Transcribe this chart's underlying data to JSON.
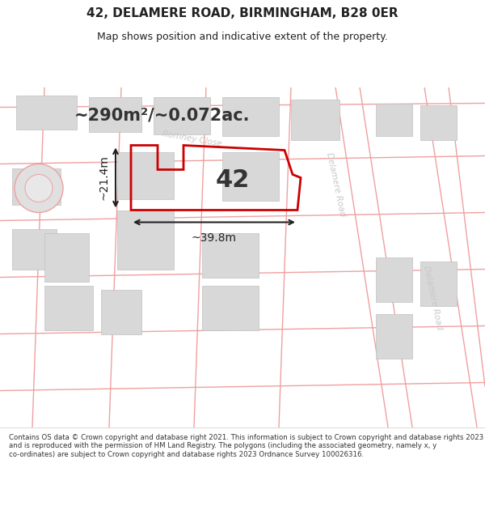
{
  "title_line1": "42, DELAMERE ROAD, BIRMINGHAM, B28 0ER",
  "title_line2": "Map shows position and indicative extent of the property.",
  "area_text": "~290m²/~0.072ac.",
  "label_42": "42",
  "label_width": "~39.8m",
  "label_height": "~21.4m",
  "road_label_1": "Delamere Road",
  "road_label_2": "Delamere Road",
  "road_label_romney": "Romney Close",
  "footer_text": "Contains OS data © Crown copyright and database right 2021. This information is subject to Crown copyright and database rights 2023 and is reproduced with the permission of HM Land Registry. The polygons (including the associated geometry, namely x, y co-ordinates) are subject to Crown copyright and database rights 2023 Ordnance Survey 100026316.",
  "bg_color": "#f0f0f0",
  "building_fill": "#d8d8d8",
  "building_stroke": "#c0c0c0",
  "property_color": "#cc0000",
  "arrow_color": "#222222",
  "title_color": "#222222",
  "footer_color": "#333333",
  "area_text_color": "#333333",
  "road_line_color": "#f0a0a0",
  "road_label_color": "#c8c8c8"
}
